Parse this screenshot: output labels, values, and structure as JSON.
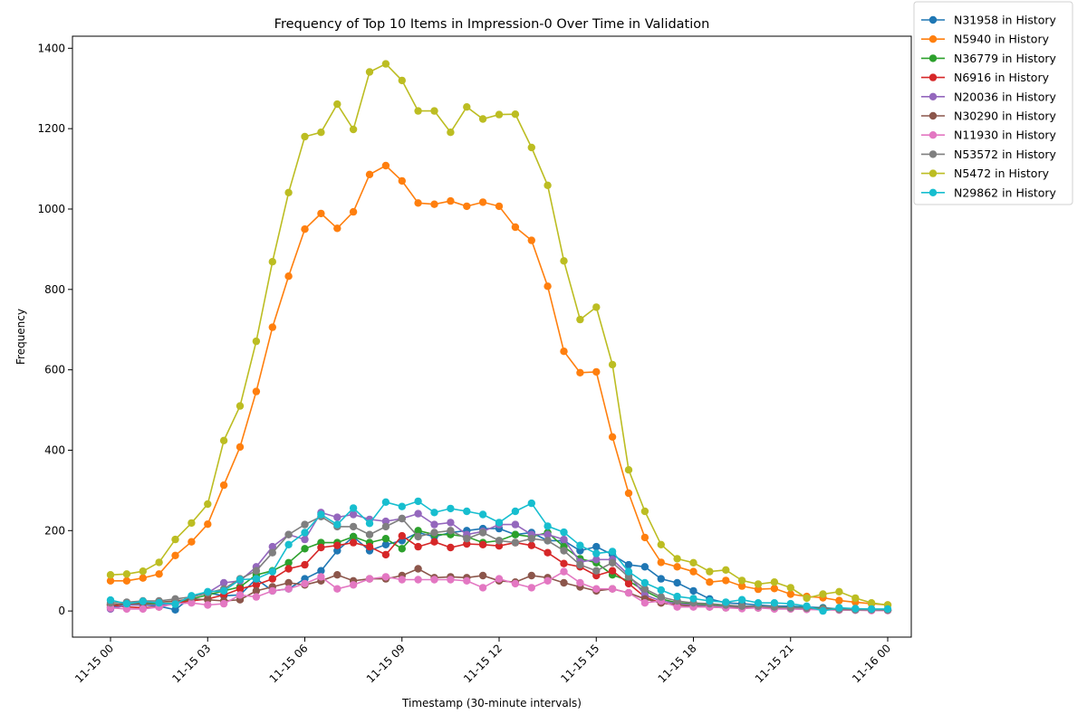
{
  "chart_data": {
    "type": "line",
    "title": "Frequency of Top 10 Items in Impression-0 Over Time in Validation",
    "xlabel": "Timestamp (30-minute intervals)",
    "ylabel": "Frequency",
    "x_start": "2019-11-15 00:00",
    "x_step_minutes": 30,
    "x_ticks": [
      "11-15 00",
      "11-15 03",
      "11-15 06",
      "11-15 09",
      "11-15 12",
      "11-15 15",
      "11-15 18",
      "11-15 21",
      "11-16 00"
    ],
    "y_ticks": [
      0,
      200,
      400,
      600,
      800,
      1000,
      1200,
      1400
    ],
    "ylim": [
      -65,
      1430
    ],
    "grid": false,
    "legend_position": "outside top-right",
    "series": [
      {
        "name": "N31958 in History",
        "color": "#1f77b4",
        "values": [
          10,
          15,
          15,
          12,
          3,
          35,
          45,
          38,
          40,
          80,
          50,
          55,
          80,
          100,
          150,
          185,
          150,
          165,
          175,
          195,
          185,
          195,
          200,
          205,
          205,
          190,
          195,
          175,
          175,
          150,
          160,
          140,
          115,
          110,
          80,
          70,
          50,
          30,
          20,
          18,
          15,
          12,
          12,
          10,
          8,
          5,
          5,
          3,
          2
        ]
      },
      {
        "name": "N5940 in History",
        "color": "#ff7f0e",
        "values": [
          75,
          75,
          82,
          92,
          138,
          172,
          216,
          313,
          408,
          546,
          706,
          833,
          950,
          989,
          952,
          993,
          1086,
          1108,
          1070,
          1015,
          1012,
          1020,
          1007,
          1017,
          1007,
          955,
          922,
          808,
          646,
          593,
          595,
          433,
          293,
          183,
          121,
          110,
          98,
          72,
          76,
          62,
          54,
          56,
          42,
          36,
          33,
          26,
          22,
          18,
          15
        ]
      },
      {
        "name": "N36779 in History",
        "color": "#2ca02c",
        "values": [
          15,
          18,
          17,
          18,
          20,
          30,
          40,
          50,
          60,
          90,
          100,
          120,
          155,
          170,
          170,
          185,
          170,
          180,
          155,
          200,
          190,
          190,
          185,
          170,
          175,
          190,
          185,
          195,
          160,
          130,
          120,
          90,
          75,
          50,
          30,
          20,
          18,
          15,
          12,
          12,
          10,
          10,
          8,
          8,
          6,
          5,
          4,
          3,
          2
        ]
      },
      {
        "name": "N6916 in History",
        "color": "#d62728",
        "values": [
          15,
          10,
          8,
          10,
          20,
          25,
          30,
          40,
          55,
          65,
          80,
          105,
          115,
          158,
          163,
          170,
          160,
          140,
          187,
          160,
          172,
          158,
          167,
          165,
          162,
          170,
          163,
          145,
          118,
          110,
          88,
          100,
          68,
          35,
          20,
          15,
          12,
          12,
          10,
          8,
          8,
          8,
          6,
          5,
          5,
          4,
          3,
          3,
          2
        ]
      },
      {
        "name": "N20036 in History",
        "color": "#9467bd",
        "values": [
          5,
          15,
          15,
          15,
          20,
          35,
          45,
          70,
          75,
          110,
          160,
          190,
          178,
          245,
          233,
          240,
          228,
          223,
          230,
          242,
          215,
          220,
          190,
          198,
          215,
          215,
          190,
          190,
          178,
          122,
          128,
          128,
          90,
          40,
          25,
          18,
          15,
          12,
          10,
          8,
          8,
          6,
          6,
          5,
          4,
          3,
          2,
          2,
          2
        ]
      },
      {
        "name": "N30290 in History",
        "color": "#8c564b",
        "values": [
          15,
          18,
          20,
          22,
          25,
          30,
          28,
          25,
          28,
          50,
          60,
          70,
          65,
          75,
          90,
          75,
          80,
          80,
          88,
          105,
          83,
          85,
          83,
          88,
          75,
          72,
          88,
          83,
          70,
          60,
          50,
          55,
          45,
          30,
          20,
          15,
          12,
          10,
          8,
          8,
          8,
          7,
          6,
          5,
          5,
          4,
          3,
          3,
          2
        ]
      },
      {
        "name": "N11930 in History",
        "color": "#e377c2",
        "values": [
          8,
          5,
          5,
          10,
          18,
          20,
          15,
          18,
          40,
          35,
          50,
          55,
          68,
          85,
          55,
          65,
          80,
          85,
          78,
          78,
          78,
          78,
          75,
          58,
          80,
          68,
          58,
          75,
          98,
          70,
          55,
          55,
          45,
          20,
          25,
          10,
          10,
          10,
          8,
          6,
          8,
          5,
          5,
          4,
          3,
          2,
          2,
          1,
          1
        ]
      },
      {
        "name": "N53572 in History",
        "color": "#7f7f7f",
        "values": [
          20,
          22,
          25,
          25,
          30,
          35,
          45,
          55,
          80,
          100,
          145,
          190,
          215,
          235,
          210,
          210,
          190,
          210,
          230,
          185,
          195,
          200,
          180,
          195,
          175,
          170,
          180,
          175,
          150,
          115,
          100,
          120,
          85,
          55,
          35,
          25,
          20,
          18,
          15,
          12,
          12,
          10,
          8,
          7,
          5,
          4,
          3,
          3,
          2
        ]
      },
      {
        "name": "N5472 in History",
        "color": "#bcbd22",
        "values": [
          90,
          92,
          99,
          121,
          178,
          219,
          266,
          424,
          510,
          671,
          869,
          1041,
          1180,
          1191,
          1261,
          1198,
          1341,
          1361,
          1320,
          1244,
          1244,
          1191,
          1254,
          1224,
          1235,
          1236,
          1153,
          1059,
          871,
          725,
          756,
          613,
          351,
          248,
          165,
          130,
          120,
          98,
          102,
          76,
          67,
          72,
          58,
          32,
          42,
          48,
          32,
          20,
          15
        ]
      },
      {
        "name": "N29862 in History",
        "color": "#17becf",
        "values": [
          27,
          18,
          24,
          20,
          17,
          38,
          48,
          50,
          78,
          80,
          98,
          165,
          195,
          240,
          215,
          256,
          218,
          271,
          260,
          273,
          245,
          255,
          248,
          240,
          220,
          248,
          268,
          211,
          196,
          163,
          143,
          148,
          98,
          70,
          52,
          36,
          31,
          25,
          22,
          28,
          20,
          20,
          18,
          12,
          0,
          8,
          6,
          5,
          5
        ]
      }
    ]
  }
}
